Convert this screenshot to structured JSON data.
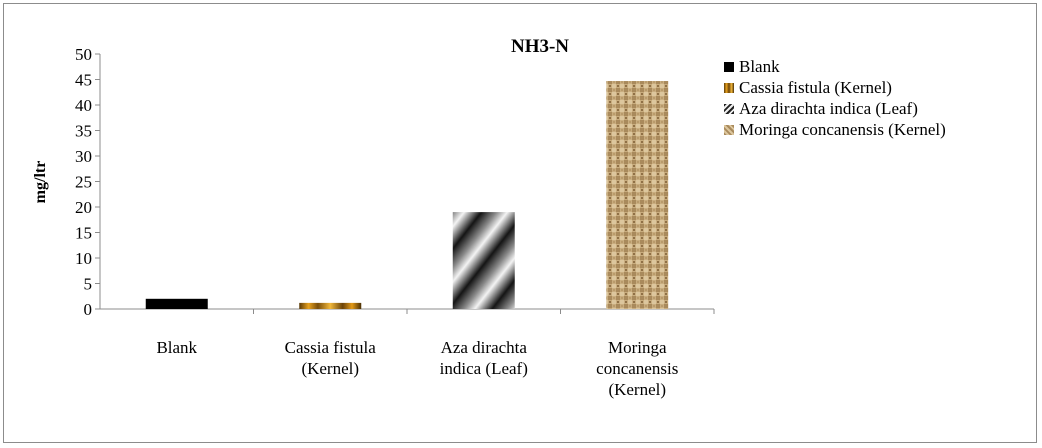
{
  "chart_data": {
    "type": "bar",
    "title": "NH3-N",
    "xlabel": "",
    "ylabel": "mg/ltr",
    "ylim": [
      0,
      50
    ],
    "yticks": [
      0,
      5,
      10,
      15,
      20,
      25,
      30,
      35,
      40,
      45,
      50
    ],
    "categories": [
      [
        "Blank"
      ],
      [
        "Cassia fistula",
        "(Kernel)"
      ],
      [
        "Aza dirachta",
        "indica (Leaf)"
      ],
      [
        "Moringa",
        "concanensis",
        "(Kernel)"
      ]
    ],
    "values": [
      2,
      1.2,
      19,
      44.7
    ],
    "grid": false,
    "legend": {
      "position": "right",
      "entries": [
        {
          "label": "Blank",
          "fill": "solid-black"
        },
        {
          "label": "Cassia fistula (Kernel)",
          "fill": "orange-metallic-gradient"
        },
        {
          "label": "Aza dirachta indica (Leaf)",
          "fill": "diagonal-gray-stripes"
        },
        {
          "label": "Moringa concanensis (Kernel)",
          "fill": "burlap-texture"
        }
      ]
    },
    "colors": {
      "blank": "#000000",
      "cassia": "#c98a14",
      "aza": "#9a9a9a",
      "moringa": "#c8ad80"
    }
  }
}
